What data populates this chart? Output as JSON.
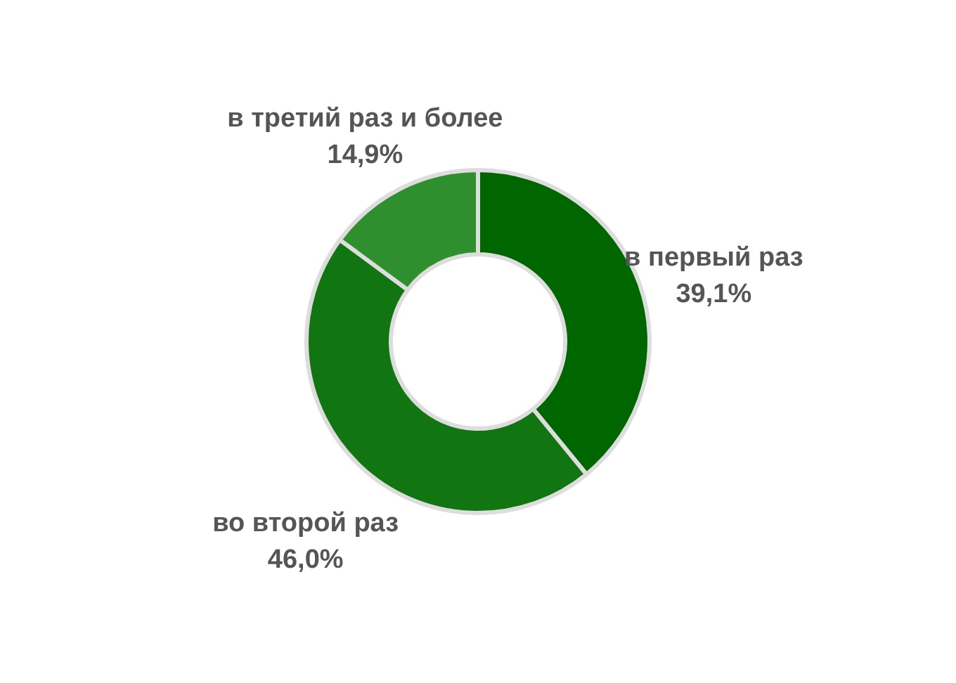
{
  "chart_data": {
    "type": "donut",
    "categories": [
      "в первый раз",
      "во второй раз",
      "в третий раз и более"
    ],
    "values": [
      39.1,
      46.0,
      14.9
    ],
    "colors": [
      "#006600",
      "#117511",
      "#2f8f2f"
    ],
    "value_labels": [
      "39,1%",
      "46,0%",
      "14,9%"
    ]
  }
}
